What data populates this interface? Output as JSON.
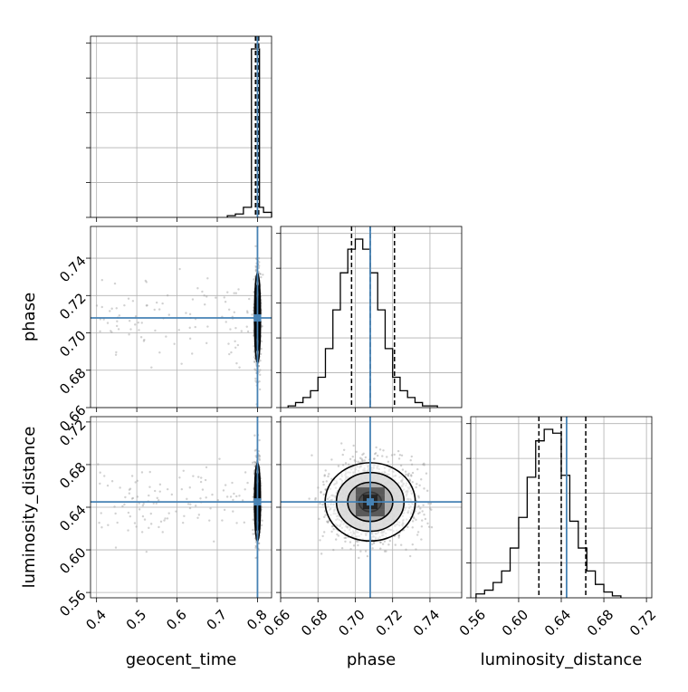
{
  "chart_data": {
    "type": "corner",
    "parameters": [
      "geocent_time",
      "phase",
      "luminosity_distance"
    ],
    "truths": {
      "geocent_time": 0.8,
      "phase": 0.708,
      "luminosity_distance": 0.645
    },
    "quantiles": {
      "geocent_time": [
        0.795,
        0.799,
        0.803
      ],
      "phase": [
        0.698,
        0.708,
        0.721
      ],
      "luminosity_distance": [
        0.619,
        0.64,
        0.663
      ]
    },
    "ranges": {
      "geocent_time": [
        0.385,
        0.835
      ],
      "phase": [
        0.66,
        0.757
      ],
      "luminosity_distance": [
        0.555,
        0.725
      ]
    },
    "ticks": {
      "geocent_time": [
        "0.4",
        "0.5",
        "0.6",
        "0.7",
        "0.8"
      ],
      "phase": [
        "0.66",
        "0.68",
        "0.70",
        "0.72",
        "0.74"
      ],
      "luminosity_distance": [
        "0.56",
        "0.60",
        "0.64",
        "0.68",
        "0.72"
      ]
    },
    "grid": true,
    "truth_color": "#4682b4",
    "line_color": "#000000",
    "histograms": {
      "geocent_time": {
        "bins": [
          0.725,
          0.745,
          0.765,
          0.785,
          0.795,
          0.805,
          0.815,
          0.835
        ],
        "counts": [
          1,
          2,
          6,
          100,
          100,
          6,
          3
        ]
      },
      "phase": {
        "edges_start": 0.664,
        "bin_width": 0.004,
        "counts": [
          1,
          3,
          6,
          10,
          18,
          35,
          58,
          80,
          94,
          100,
          94,
          80,
          58,
          35,
          18,
          10,
          6,
          3,
          1,
          1
        ]
      },
      "luminosity_distance": {
        "edges_start": 0.56,
        "bin_width": 0.008,
        "counts": [
          2,
          4,
          8,
          14,
          26,
          42,
          63,
          82,
          88,
          86,
          64,
          40,
          26,
          14,
          7,
          3,
          1
        ]
      }
    },
    "contour_levels_sigma": [
      0.5,
      1.0,
      1.5,
      2.0
    ]
  }
}
